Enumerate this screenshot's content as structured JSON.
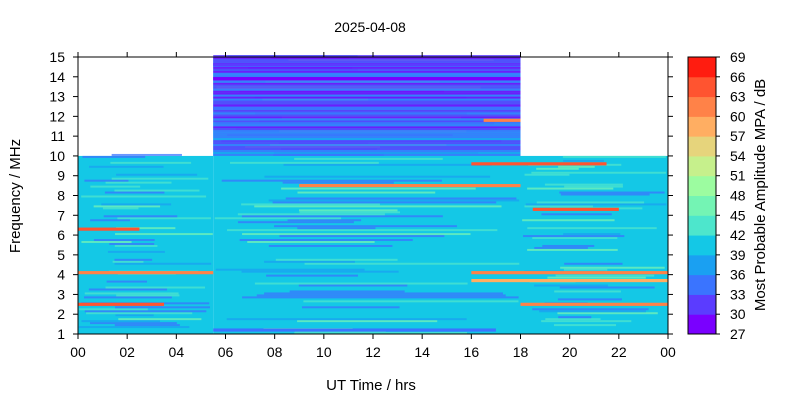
{
  "chart_data": {
    "type": "heatmap",
    "title": "2025-04-08",
    "xlabel": "UT Time / hrs",
    "ylabel": "Frequency / MHz",
    "colorbar_label": "Most Probable Amplitude MPA / dB",
    "xlim": [
      0,
      24
    ],
    "ylim": [
      1,
      15
    ],
    "x_ticks": [
      "00",
      "02",
      "04",
      "06",
      "08",
      "10",
      "12",
      "14",
      "16",
      "18",
      "20",
      "22",
      "00"
    ],
    "y_ticks": [
      "1",
      "2",
      "3",
      "4",
      "5",
      "6",
      "7",
      "8",
      "9",
      "10",
      "11",
      "12",
      "13",
      "14",
      "15"
    ],
    "colorbar_ticks": [
      "27",
      "30",
      "33",
      "36",
      "39",
      "42",
      "45",
      "48",
      "51",
      "54",
      "57",
      "60",
      "63",
      "66",
      "69"
    ],
    "colorbar_range": [
      27,
      69
    ],
    "colorbar_colors": [
      "#7a00ff",
      "#5b3cff",
      "#3a74ff",
      "#1aa0f2",
      "#14c8e6",
      "#4de6cc",
      "#74f4b4",
      "#9cfca0",
      "#c6f08c",
      "#e6d47c",
      "#ffae62",
      "#ff8248",
      "#ff5430",
      "#ff1c10"
    ],
    "coverage": [
      {
        "time_start": 0,
        "time_end": 5.5,
        "freq_min": 1,
        "freq_max": 10
      },
      {
        "time_start": 5.5,
        "time_end": 18,
        "freq_min": 1,
        "freq_max": 15
      },
      {
        "time_start": 18,
        "time_end": 24,
        "freq_min": 1,
        "freq_max": 10
      }
    ],
    "background_level": 40,
    "bands": [
      {
        "freq": 14.6,
        "level": 31,
        "time_start": 5.5,
        "time_end": 18
      },
      {
        "freq": 13.9,
        "level": 28,
        "time_start": 5.5,
        "time_end": 18
      },
      {
        "freq": 12.4,
        "level": 33,
        "time_start": 5.5,
        "time_end": 18
      },
      {
        "freq": 11.8,
        "level": 60,
        "time_start": 16.5,
        "time_end": 18
      },
      {
        "freq": 9.6,
        "level": 63,
        "time_start": 16,
        "time_end": 21.5
      },
      {
        "freq": 8.5,
        "level": 60,
        "time_start": 9,
        "time_end": 18
      },
      {
        "freq": 7.3,
        "level": 63,
        "time_start": 18.5,
        "time_end": 22
      },
      {
        "freq": 6.3,
        "level": 63,
        "time_start": 0,
        "time_end": 2.5
      },
      {
        "freq": 4.1,
        "level": 60,
        "time_start": 0,
        "time_end": 5.5
      },
      {
        "freq": 4.1,
        "level": 60,
        "time_start": 16,
        "time_end": 24
      },
      {
        "freq": 3.7,
        "level": 57,
        "time_start": 16,
        "time_end": 24
      },
      {
        "freq": 2.5,
        "level": 63,
        "time_start": 0,
        "time_end": 3.5
      },
      {
        "freq": 2.5,
        "level": 60,
        "time_start": 18,
        "time_end": 24
      },
      {
        "freq": 1.2,
        "level": 33,
        "time_start": 5.5,
        "time_end": 17
      }
    ]
  }
}
